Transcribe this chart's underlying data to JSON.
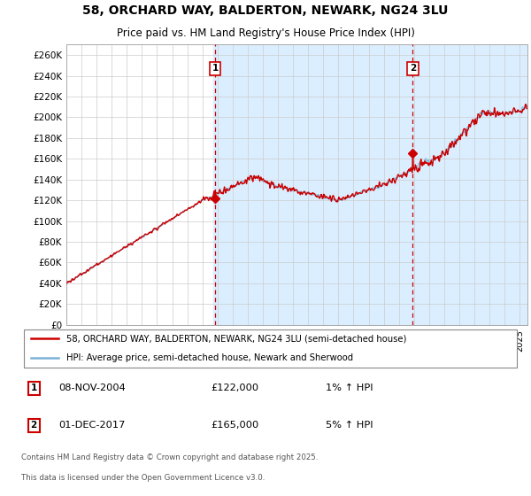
{
  "title1": "58, ORCHARD WAY, BALDERTON, NEWARK, NG24 3LU",
  "title2": "Price paid vs. HM Land Registry's House Price Index (HPI)",
  "ytick_labels": [
    "£0",
    "£20K",
    "£40K",
    "£60K",
    "£80K",
    "£100K",
    "£120K",
    "£140K",
    "£160K",
    "£180K",
    "£200K",
    "£220K",
    "£240K",
    "£260K"
  ],
  "yticks": [
    0,
    20000,
    40000,
    60000,
    80000,
    100000,
    120000,
    140000,
    160000,
    180000,
    200000,
    220000,
    240000,
    260000
  ],
  "legend_line1": "58, ORCHARD WAY, BALDERTON, NEWARK, NG24 3LU (semi-detached house)",
  "legend_line2": "HPI: Average price, semi-detached house, Newark and Sherwood",
  "sale1_label": "1",
  "sale1_date": "08-NOV-2004",
  "sale1_price": "£122,000",
  "sale1_hpi": "1% ↑ HPI",
  "sale2_label": "2",
  "sale2_date": "01-DEC-2017",
  "sale2_price": "£165,000",
  "sale2_hpi": "5% ↑ HPI",
  "footnote1": "Contains HM Land Registry data © Crown copyright and database right 2025.",
  "footnote2": "This data is licensed under the Open Government Licence v3.0.",
  "sale1_year": 2004.85,
  "sale2_year": 2017.92,
  "xlim_start": 1995.0,
  "xlim_end": 2025.5,
  "ylim_min": 0,
  "ylim_max": 270000,
  "hpi_line_color": "#7ab3d8",
  "price_color": "#cc0000",
  "bg_shade_color": "#dbeeff",
  "chart_bg_color": "#f0f0f0",
  "grid_color": "#cccccc"
}
